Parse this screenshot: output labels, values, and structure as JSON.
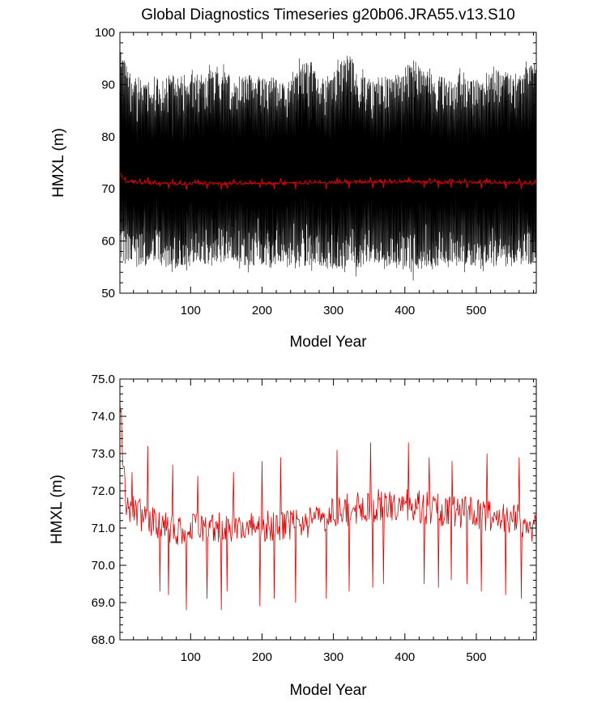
{
  "title": "Global Diagnostics Timeseries g20b06.JRA55.v13.S10",
  "colors": {
    "monthly": "#000000",
    "annual": "#e00000",
    "axis": "#000000",
    "background": "#ffffff"
  },
  "chart_data": [
    {
      "type": "line",
      "xlabel": "Model Year",
      "ylabel": "HMXL (m)",
      "xlim": [
        1,
        584
      ],
      "ylim": [
        50,
        100
      ],
      "xticks": [
        100,
        200,
        300,
        400,
        500
      ],
      "yticks": [
        50,
        60,
        70,
        80,
        90,
        100
      ],
      "grid": false,
      "series": [
        {
          "color": "#000000",
          "sampling": "monthly",
          "x_start": 1,
          "x_end": 584,
          "envelope_anchor_years": [
            1,
            5,
            10,
            25,
            50,
            75,
            100,
            130,
            160,
            200,
            230,
            265,
            290,
            320,
            350,
            380,
            410,
            440,
            470,
            500,
            530,
            560,
            584
          ],
          "upper_envelope": [
            98,
            97,
            93,
            91,
            91,
            92,
            91,
            93,
            92,
            92,
            91,
            95,
            91,
            96,
            91,
            92,
            94,
            92,
            91,
            91,
            93,
            92,
            94
          ],
          "lower_envelope": [
            57,
            55,
            56,
            55,
            56,
            54,
            56,
            55,
            56,
            54,
            56,
            55,
            55,
            54,
            56,
            55,
            54,
            55,
            56,
            55,
            55,
            55,
            56
          ]
        },
        {
          "color": "#e00000",
          "sampling": "annual",
          "x": [
            1,
            3,
            5,
            8,
            12,
            20,
            40,
            60,
            80,
            100,
            150,
            200,
            250,
            300,
            350,
            400,
            450,
            500,
            550,
            584
          ],
          "values": [
            74.2,
            73.9,
            73.0,
            72.0,
            71.5,
            71.5,
            71.2,
            71.0,
            71.0,
            71.0,
            71.0,
            71.0,
            71.1,
            71.4,
            71.6,
            71.6,
            71.5,
            71.4,
            71.3,
            71.0
          ]
        }
      ]
    },
    {
      "type": "line",
      "xlabel": "Model Year",
      "ylabel": "HMXL (m)",
      "xlim": [
        1,
        584
      ],
      "ylim": [
        68.0,
        75.0
      ],
      "xticks": [
        100,
        200,
        300,
        400,
        500
      ],
      "yticks": [
        "68.0",
        "69.0",
        "70.0",
        "71.0",
        "72.0",
        "73.0",
        "74.0",
        "75.0"
      ],
      "grid": false,
      "series": [
        {
          "color": "#e00000",
          "sampling": "annual",
          "x_start": 1,
          "x_end": 584,
          "trend_anchor_years": [
            1,
            3,
            5,
            8,
            12,
            20,
            40,
            60,
            80,
            100,
            150,
            200,
            250,
            300,
            350,
            400,
            450,
            500,
            550,
            584
          ],
          "trend_values": [
            74.2,
            73.9,
            73.0,
            72.0,
            71.5,
            71.5,
            71.2,
            71.0,
            71.0,
            71.0,
            71.0,
            71.0,
            71.1,
            71.4,
            71.6,
            71.6,
            71.5,
            71.4,
            71.3,
            71.0
          ],
          "dip_years": [
            57,
            69,
            94,
            123,
            143,
            151,
            197,
            217,
            247,
            290,
            322,
            355,
            370,
            405,
            427,
            447,
            465,
            487,
            507,
            541,
            563
          ],
          "dip_values": [
            69.3,
            69.2,
            68.8,
            69.1,
            68.8,
            69.3,
            68.9,
            69.1,
            69.0,
            69.1,
            69.3,
            69.4,
            69.5,
            69.3,
            69.5,
            69.4,
            69.6,
            69.5,
            69.3,
            69.2,
            69.1
          ],
          "peak_years": [
            18,
            40,
            75,
            110,
            160,
            200,
            226,
            305,
            352,
            405,
            434,
            466,
            515,
            560
          ],
          "peak_values": [
            72.5,
            73.2,
            72.7,
            72.4,
            72.5,
            72.8,
            72.9,
            73.1,
            73.3,
            73.3,
            72.9,
            72.8,
            73.0,
            72.9
          ]
        }
      ]
    }
  ]
}
